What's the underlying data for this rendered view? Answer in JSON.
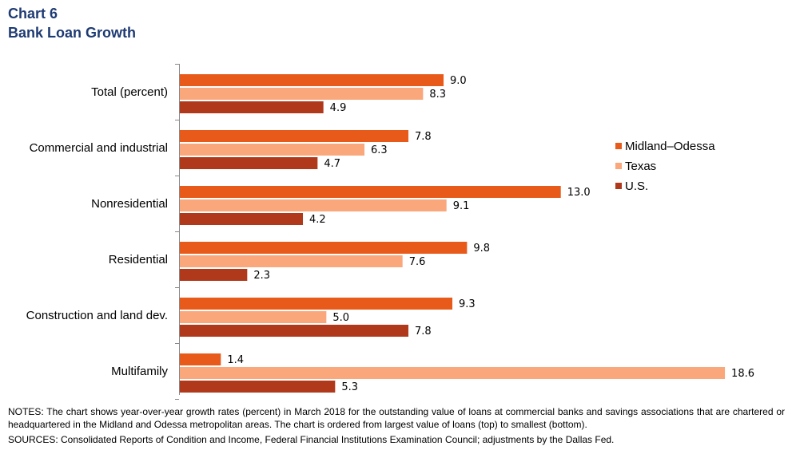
{
  "header": {
    "chart_number": "Chart 6",
    "title": "Bank Loan Growth"
  },
  "notes": "NOTES: The chart shows year-over-year growth rates (percent) in March 2018 for the outstanding value of loans at commercial banks and savings associations that are chartered or headquartered in the Midland and Odessa metropolitan areas. The chart is ordered from largest value of loans (top) to smallest (bottom).",
  "sources": "SOURCES: Consolidated Reports of Condition and Income, Federal Financial Institutions Examination Council; adjustments by the Dallas Fed.",
  "colors": {
    "title": "#1f3b73",
    "midland_odessa": "#e85a1a",
    "texas": "#f9a77b",
    "us": "#b0391c"
  },
  "chart_data": {
    "type": "bar",
    "orientation": "horizontal",
    "title": "Bank Loan Growth",
    "categories": [
      "Total (percent)",
      "Commercial and industrial",
      "Nonresidential",
      "Residential",
      "Construction and land dev.",
      "Multifamily"
    ],
    "series": [
      {
        "name": "Midland–Odessa",
        "color": "#e85a1a",
        "values": [
          9.0,
          7.8,
          13.0,
          9.8,
          9.3,
          1.4
        ]
      },
      {
        "name": "Texas",
        "color": "#f9a77b",
        "values": [
          8.3,
          6.3,
          9.1,
          7.6,
          5.0,
          18.6
        ]
      },
      {
        "name": "U.S.",
        "color": "#b0391c",
        "values": [
          4.9,
          4.7,
          4.2,
          2.3,
          7.8,
          5.3
        ]
      }
    ],
    "xlim": [
      0,
      18.6
    ],
    "grid": false,
    "legend_position": "right",
    "data_labels": true
  }
}
